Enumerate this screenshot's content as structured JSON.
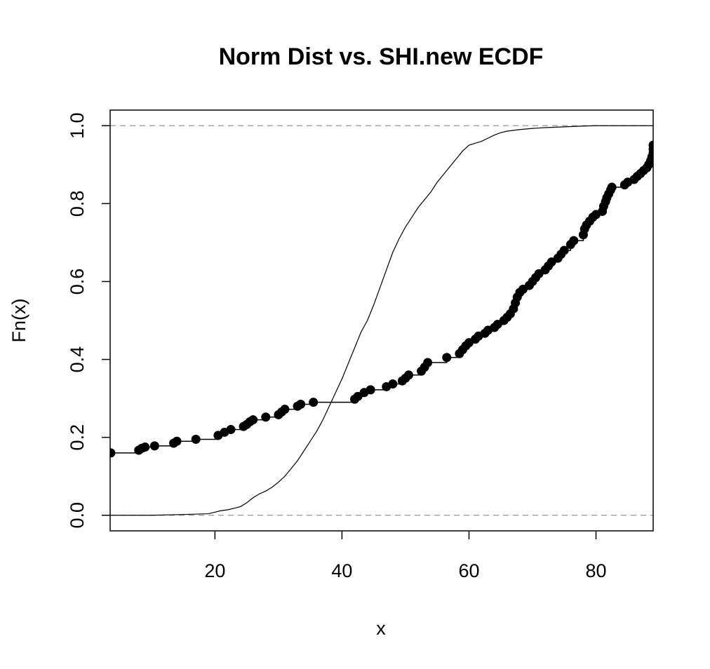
{
  "chart_data": {
    "type": "line",
    "title": "Norm Dist vs. SHI.new ECDF",
    "xlabel": "x",
    "ylabel": "Fn(x)",
    "xlim": [
      3.5,
      89
    ],
    "ylim": [
      -0.04,
      1.04
    ],
    "x_ticks": [
      20,
      40,
      60,
      80
    ],
    "y_ticks": [
      0.0,
      0.2,
      0.4,
      0.6,
      0.8,
      1.0
    ],
    "reference_lines_y": [
      0,
      1
    ],
    "grid": false,
    "legend": "none",
    "series": [
      {
        "style": "step-with-points",
        "color": "#000000",
        "points": [
          [
            3.6,
            0.16
          ],
          [
            8,
            0.167
          ],
          [
            8.5,
            0.172
          ],
          [
            9,
            0.175
          ],
          [
            10.5,
            0.178
          ],
          [
            13.5,
            0.185
          ],
          [
            14,
            0.19
          ],
          [
            17,
            0.195
          ],
          [
            20.5,
            0.205
          ],
          [
            21.5,
            0.213
          ],
          [
            22.5,
            0.22
          ],
          [
            24.5,
            0.228
          ],
          [
            25,
            0.233
          ],
          [
            25.5,
            0.24
          ],
          [
            26,
            0.245
          ],
          [
            28,
            0.252
          ],
          [
            30,
            0.258
          ],
          [
            30.5,
            0.265
          ],
          [
            31,
            0.272
          ],
          [
            33,
            0.28
          ],
          [
            33.5,
            0.285
          ],
          [
            35.5,
            0.29
          ],
          [
            42,
            0.298
          ],
          [
            42.5,
            0.305
          ],
          [
            43.5,
            0.315
          ],
          [
            44.5,
            0.322
          ],
          [
            47,
            0.33
          ],
          [
            48,
            0.337
          ],
          [
            49.5,
            0.345
          ],
          [
            50,
            0.352
          ],
          [
            50.5,
            0.36
          ],
          [
            52.5,
            0.37
          ],
          [
            53,
            0.38
          ],
          [
            53.5,
            0.392
          ],
          [
            56.5,
            0.405
          ],
          [
            58.5,
            0.415
          ],
          [
            59,
            0.425
          ],
          [
            59.5,
            0.435
          ],
          [
            60,
            0.443
          ],
          [
            61,
            0.452
          ],
          [
            61.5,
            0.46
          ],
          [
            62.5,
            0.467
          ],
          [
            63,
            0.475
          ],
          [
            64,
            0.482
          ],
          [
            64.5,
            0.49
          ],
          [
            65.5,
            0.5
          ],
          [
            66,
            0.508
          ],
          [
            66.5,
            0.517
          ],
          [
            67,
            0.53
          ],
          [
            67.3,
            0.545
          ],
          [
            67.6,
            0.56
          ],
          [
            68,
            0.572
          ],
          [
            68.5,
            0.58
          ],
          [
            69.5,
            0.59
          ],
          [
            70,
            0.6
          ],
          [
            70.5,
            0.61
          ],
          [
            71,
            0.62
          ],
          [
            72,
            0.63
          ],
          [
            72.5,
            0.64
          ],
          [
            73,
            0.65
          ],
          [
            74,
            0.66
          ],
          [
            74.5,
            0.67
          ],
          [
            75,
            0.68
          ],
          [
            76,
            0.695
          ],
          [
            76.5,
            0.705
          ],
          [
            78,
            0.72
          ],
          [
            78.2,
            0.735
          ],
          [
            78.5,
            0.745
          ],
          [
            79,
            0.755
          ],
          [
            79.5,
            0.765
          ],
          [
            80,
            0.772
          ],
          [
            81,
            0.78
          ],
          [
            81.2,
            0.793
          ],
          [
            81.5,
            0.805
          ],
          [
            81.7,
            0.815
          ],
          [
            82,
            0.825
          ],
          [
            82.3,
            0.835
          ],
          [
            82.5,
            0.842
          ],
          [
            84.5,
            0.848
          ],
          [
            85,
            0.855
          ],
          [
            86,
            0.862
          ],
          [
            86.5,
            0.87
          ],
          [
            87,
            0.877
          ],
          [
            87.5,
            0.885
          ],
          [
            88,
            0.892
          ],
          [
            88.3,
            0.9
          ],
          [
            88.6,
            0.91
          ],
          [
            88.8,
            0.92
          ],
          [
            89,
            0.93
          ],
          [
            89,
            0.94
          ],
          [
            89,
            0.95
          ]
        ]
      },
      {
        "style": "line",
        "color": "#000000",
        "points": [
          [
            3.5,
            0.0
          ],
          [
            10,
            0.0
          ],
          [
            15,
            0.002
          ],
          [
            19,
            0.004
          ],
          [
            20,
            0.008
          ],
          [
            21,
            0.012
          ],
          [
            22,
            0.014
          ],
          [
            23,
            0.018
          ],
          [
            24,
            0.022
          ],
          [
            25,
            0.032
          ],
          [
            26,
            0.045
          ],
          [
            27,
            0.055
          ],
          [
            28,
            0.062
          ],
          [
            29,
            0.072
          ],
          [
            30,
            0.085
          ],
          [
            31,
            0.1
          ],
          [
            32,
            0.12
          ],
          [
            33,
            0.14
          ],
          [
            34,
            0.165
          ],
          [
            35,
            0.19
          ],
          [
            36,
            0.215
          ],
          [
            37,
            0.245
          ],
          [
            38,
            0.28
          ],
          [
            39,
            0.315
          ],
          [
            40,
            0.35
          ],
          [
            41,
            0.39
          ],
          [
            42,
            0.43
          ],
          [
            43,
            0.47
          ],
          [
            44,
            0.5
          ],
          [
            45,
            0.54
          ],
          [
            46,
            0.585
          ],
          [
            47,
            0.63
          ],
          [
            48,
            0.675
          ],
          [
            49,
            0.71
          ],
          [
            50,
            0.74
          ],
          [
            51,
            0.765
          ],
          [
            52,
            0.79
          ],
          [
            53,
            0.81
          ],
          [
            54,
            0.83
          ],
          [
            55,
            0.855
          ],
          [
            56,
            0.875
          ],
          [
            57,
            0.895
          ],
          [
            58,
            0.915
          ],
          [
            59,
            0.935
          ],
          [
            60,
            0.95
          ],
          [
            61,
            0.955
          ],
          [
            62,
            0.96
          ],
          [
            63,
            0.968
          ],
          [
            64,
            0.976
          ],
          [
            65,
            0.982
          ],
          [
            66,
            0.986
          ],
          [
            67,
            0.988
          ],
          [
            68,
            0.99
          ],
          [
            70,
            0.993
          ],
          [
            72,
            0.995
          ],
          [
            75,
            0.997
          ],
          [
            78,
            0.999
          ],
          [
            80,
            1.0
          ],
          [
            89,
            1.0
          ]
        ]
      }
    ]
  }
}
